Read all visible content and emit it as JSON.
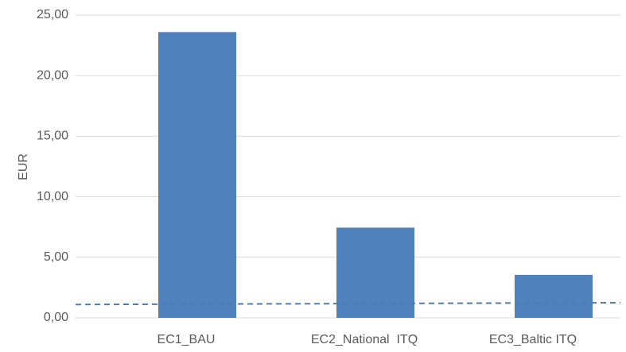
{
  "chart_data": {
    "type": "bar",
    "y_label": "EUR",
    "categories": [
      "EC1_BAU",
      "EC2_National  ITQ",
      "EC3_Baltic ITQ"
    ],
    "values": [
      23.6,
      7.45,
      3.55
    ],
    "color": "#4f81bd",
    "dashed_line": {
      "color": "#4a7ebb",
      "values": [
        1.1,
        1.25
      ]
    },
    "ylim": [
      0,
      25
    ],
    "yticks": [
      {
        "value": 0,
        "label": "0,00"
      },
      {
        "value": 5,
        "label": "5,00"
      },
      {
        "value": 10,
        "label": "10,00"
      },
      {
        "value": 15,
        "label": "15,00"
      },
      {
        "value": 20,
        "label": "20,00"
      },
      {
        "value": 25,
        "label": "25,00"
      }
    ],
    "grid": true
  }
}
